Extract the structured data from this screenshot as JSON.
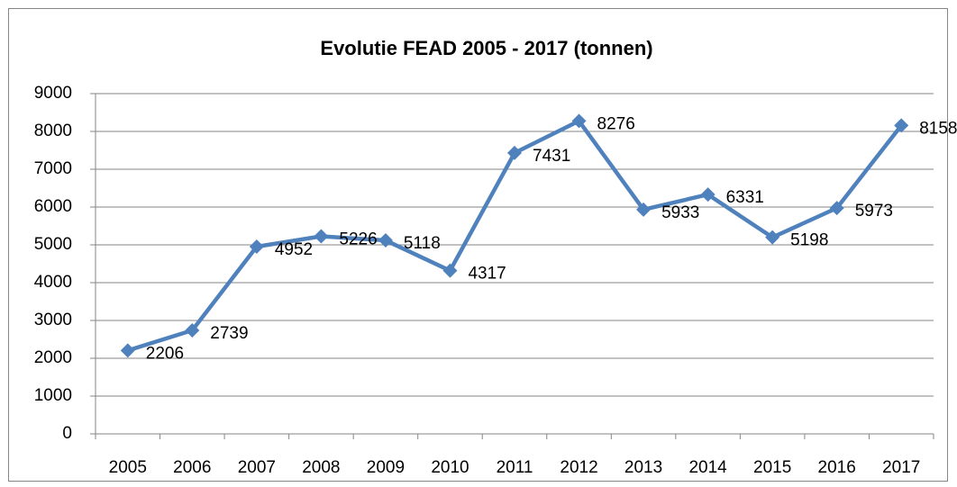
{
  "chart_data": {
    "type": "line",
    "title": "Evolutie FEAD 2005 - 2017 (tonnen)",
    "categories": [
      "2005",
      "2006",
      "2007",
      "2008",
      "2009",
      "2010",
      "2011",
      "2012",
      "2013",
      "2014",
      "2015",
      "2016",
      "2017"
    ],
    "values": [
      2206,
      2739,
      4952,
      5226,
      5118,
      4317,
      7431,
      8276,
      5933,
      6331,
      5198,
      5973,
      8158
    ],
    "color": "#4f81bd",
    "ylim": [
      0,
      9000
    ],
    "yticks": [
      0,
      1000,
      2000,
      3000,
      4000,
      5000,
      6000,
      7000,
      8000,
      9000
    ],
    "grid": true
  }
}
